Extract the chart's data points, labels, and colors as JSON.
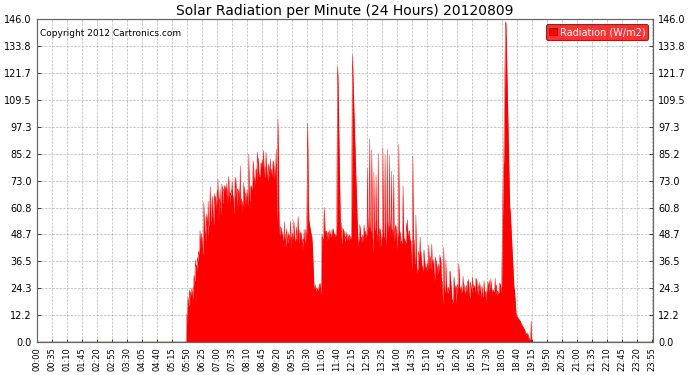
{
  "title": "Solar Radiation per Minute (24 Hours) 20120809",
  "ylabel": "Radiation (W/m2)",
  "copyright_text": "Copyright 2012 Cartronics.com",
  "background_color": "#ffffff",
  "plot_bg_color": "#ffffff",
  "line_color": "#ff0000",
  "fill_color": "#ff0000",
  "grid_color": "#888888",
  "dashed_line_color": "#ff0000",
  "yticks": [
    0.0,
    12.2,
    24.3,
    36.5,
    48.7,
    60.8,
    73.0,
    85.2,
    97.3,
    109.5,
    121.7,
    133.8,
    146.0
  ],
  "ylim": [
    0.0,
    146.0
  ],
  "total_minutes": 1440,
  "x_tick_interval": 35,
  "x_tick_labels": [
    "00:00",
    "00:35",
    "01:10",
    "01:45",
    "02:20",
    "02:55",
    "03:30",
    "04:05",
    "04:40",
    "05:15",
    "05:50",
    "06:25",
    "07:00",
    "07:35",
    "08:10",
    "08:45",
    "09:20",
    "09:55",
    "10:30",
    "11:05",
    "11:40",
    "12:15",
    "12:50",
    "13:25",
    "14:00",
    "14:35",
    "15:10",
    "15:45",
    "16:20",
    "16:55",
    "17:30",
    "18:05",
    "18:40",
    "19:15",
    "19:50",
    "20:25",
    "21:00",
    "21:35",
    "22:10",
    "22:45",
    "23:20",
    "23:55"
  ]
}
